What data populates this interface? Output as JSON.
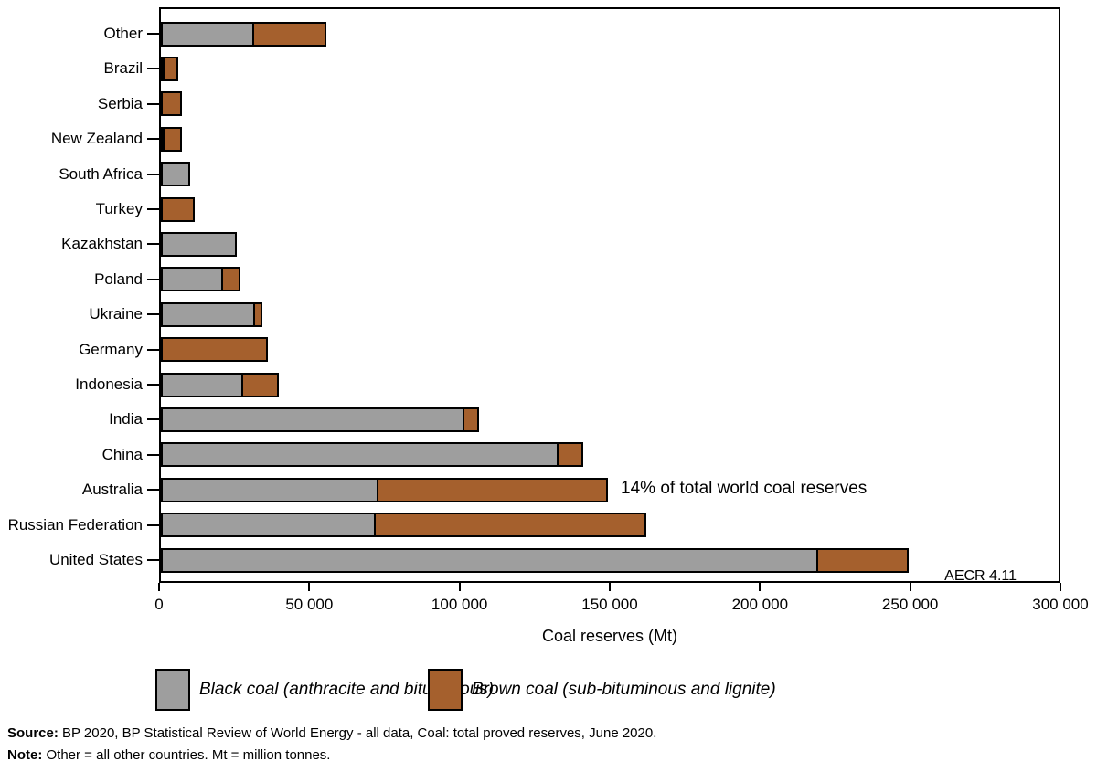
{
  "chart_data": {
    "type": "bar",
    "orientation": "horizontal",
    "stacked": true,
    "title": "",
    "xlabel": "Coal reserves (Mt)",
    "ylabel": "",
    "xlim": [
      0,
      300000
    ],
    "grid": false,
    "categories_top_to_bottom": [
      "Other",
      "Brazil",
      "Serbia",
      "New Zealand",
      "South Africa",
      "Turkey",
      "Kazakhstan",
      "Poland",
      "Ukraine",
      "Germany",
      "Indonesia",
      "India",
      "China",
      "Australia",
      "Russian Federation",
      "United States"
    ],
    "series": [
      {
        "name": "Black coal (anthracite and bituminous)",
        "color": "#9e9e9e",
        "values": [
          31000,
          1300,
          0,
          800,
          9700,
          0,
          25400,
          20800,
          31300,
          0,
          27400,
          101000,
          132500,
          72500,
          71600,
          218800
        ]
      },
      {
        "name": "Brown coal (sub-bituminous and lignite)",
        "color": "#a5602d",
        "values": [
          24700,
          5100,
          7100,
          6400,
          0,
          11200,
          0,
          6200,
          3100,
          35700,
          12500,
          5500,
          8600,
          76900,
          90600,
          30700
        ]
      }
    ],
    "bar_border_color": "#000000",
    "xticks": [
      {
        "value": 0,
        "label": "0"
      },
      {
        "value": 50000,
        "label": "50 000"
      },
      {
        "value": 100000,
        "label": "100 000"
      },
      {
        "value": 150000,
        "label": "150 000"
      },
      {
        "value": 200000,
        "label": "200 000"
      },
      {
        "value": 250000,
        "label": "250 000"
      },
      {
        "value": 300000,
        "label": "300 000"
      }
    ],
    "annotation": {
      "text": "14% of total world coal reserves",
      "category": "Australia"
    },
    "plot_label": "AECR 4.11",
    "legend_position": "bottom"
  },
  "legend": {
    "items": [
      {
        "label": "Black coal (anthracite and bituminous)",
        "color": "#9e9e9e"
      },
      {
        "label": "Brown coal (sub-bituminous and lignite)",
        "color": "#a5602d"
      }
    ]
  },
  "footer": {
    "source_label": "Source:",
    "source_text": " BP 2020, BP Statistical Review of World Energy - all data, Coal: total proved reserves, June 2020.",
    "note_label": "Note:",
    "note_text": " Other = all other countries. Mt = million tonnes."
  }
}
